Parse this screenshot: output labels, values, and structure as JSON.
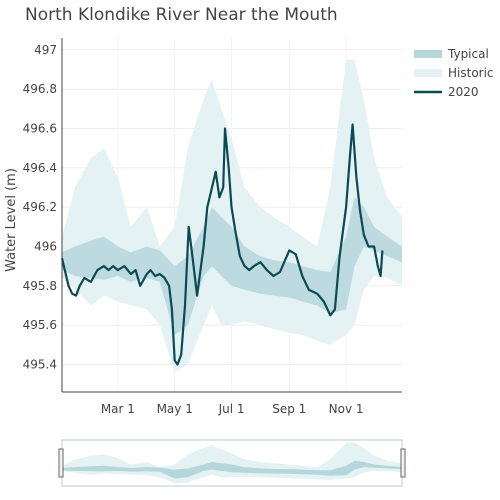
{
  "chart_data": {
    "type": "line",
    "title": "North Klondike River Near the Mouth",
    "ylabel": "Water Level (m)",
    "xlabel": "",
    "x_domain": [
      "2020-01-01",
      "2020-12-31"
    ],
    "ylim": [
      495.26,
      497.06
    ],
    "y_ticks": [
      495.4,
      495.6,
      495.8,
      496,
      496.2,
      496.4,
      496.6,
      496.8,
      497
    ],
    "y_tick_labels": [
      "495.4",
      "495.6",
      "495.8",
      "496",
      "496.2",
      "496.4",
      "496.6",
      "496.8",
      "497"
    ],
    "x_ticks": [
      "2020-03-01",
      "2020-05-01",
      "2020-07-01",
      "2020-09-01",
      "2020-11-01"
    ],
    "x_tick_labels": [
      "Mar 1",
      "May 1",
      "Jul 1",
      "Sep 1",
      "Nov 1"
    ],
    "grid": true,
    "legend_position": "top-right",
    "legend": {
      "typical": "Typical",
      "historic": "Historic",
      "current": "2020"
    },
    "colors": {
      "typical": "#b5d6db",
      "historic": "#e4f2f4",
      "current": "#0b4a51"
    },
    "historic_band": {
      "x": [
        "2020-01-01",
        "2020-01-15",
        "2020-02-01",
        "2020-02-15",
        "2020-03-01",
        "2020-03-15",
        "2020-04-01",
        "2020-04-15",
        "2020-05-01",
        "2020-05-15",
        "2020-06-01",
        "2020-06-10",
        "2020-06-20",
        "2020-07-01",
        "2020-07-15",
        "2020-08-01",
        "2020-08-15",
        "2020-09-01",
        "2020-09-15",
        "2020-10-01",
        "2020-10-15",
        "2020-11-01",
        "2020-11-10",
        "2020-11-20",
        "2020-12-01",
        "2020-12-15",
        "2020-12-31"
      ],
      "low": [
        495.84,
        495.78,
        495.7,
        495.75,
        495.72,
        495.7,
        495.68,
        495.6,
        495.36,
        495.4,
        495.6,
        495.7,
        495.6,
        495.6,
        495.62,
        495.6,
        495.58,
        495.56,
        495.55,
        495.52,
        495.5,
        495.55,
        495.6,
        495.78,
        495.85,
        495.84,
        495.8
      ],
      "high": [
        496.05,
        496.3,
        496.45,
        496.5,
        496.35,
        496.1,
        496.2,
        496.0,
        496.1,
        496.5,
        496.75,
        496.85,
        496.7,
        496.55,
        496.3,
        496.2,
        496.15,
        496.1,
        496.05,
        496.0,
        496.3,
        496.95,
        496.95,
        496.75,
        496.45,
        496.25,
        496.15
      ]
    },
    "typical_band": {
      "x": [
        "2020-01-01",
        "2020-01-15",
        "2020-02-01",
        "2020-02-15",
        "2020-03-01",
        "2020-03-15",
        "2020-04-01",
        "2020-04-15",
        "2020-05-01",
        "2020-05-15",
        "2020-06-01",
        "2020-06-10",
        "2020-06-20",
        "2020-07-01",
        "2020-07-15",
        "2020-08-01",
        "2020-08-15",
        "2020-09-01",
        "2020-09-15",
        "2020-10-01",
        "2020-10-15",
        "2020-11-01",
        "2020-11-10",
        "2020-11-20",
        "2020-12-01",
        "2020-12-15",
        "2020-12-31"
      ],
      "low": [
        495.88,
        495.85,
        495.84,
        495.83,
        495.85,
        495.82,
        495.84,
        495.82,
        495.55,
        495.6,
        495.85,
        495.9,
        495.85,
        495.8,
        495.78,
        495.76,
        495.75,
        495.74,
        495.72,
        495.7,
        495.66,
        495.68,
        495.9,
        496.0,
        495.98,
        495.95,
        495.92
      ],
      "high": [
        495.97,
        496.0,
        496.03,
        496.05,
        496.0,
        495.97,
        496.0,
        495.98,
        495.9,
        495.95,
        496.1,
        496.2,
        496.15,
        496.1,
        496.0,
        495.95,
        495.93,
        495.92,
        495.9,
        495.88,
        495.87,
        496.05,
        496.25,
        496.2,
        496.1,
        496.05,
        496.0
      ]
    },
    "series_2020": {
      "name": "2020",
      "x": [
        "2020-01-01",
        "2020-01-04",
        "2020-01-08",
        "2020-01-12",
        "2020-01-16",
        "2020-01-20",
        "2020-01-25",
        "2020-02-01",
        "2020-02-08",
        "2020-02-15",
        "2020-02-20",
        "2020-02-25",
        "2020-03-01",
        "2020-03-08",
        "2020-03-15",
        "2020-03-20",
        "2020-03-25",
        "2020-04-01",
        "2020-04-05",
        "2020-04-10",
        "2020-04-15",
        "2020-04-20",
        "2020-04-25",
        "2020-04-28",
        "2020-05-01",
        "2020-05-04",
        "2020-05-08",
        "2020-05-12",
        "2020-05-16",
        "2020-05-20",
        "2020-05-25",
        "2020-06-01",
        "2020-06-05",
        "2020-06-10",
        "2020-06-14",
        "2020-06-18",
        "2020-06-22",
        "2020-06-24",
        "2020-06-28",
        "2020-07-01",
        "2020-07-05",
        "2020-07-10",
        "2020-07-15",
        "2020-07-20",
        "2020-07-25",
        "2020-08-01",
        "2020-08-08",
        "2020-08-15",
        "2020-08-22",
        "2020-09-01",
        "2020-09-08",
        "2020-09-15",
        "2020-09-22",
        "2020-10-01",
        "2020-10-08",
        "2020-10-15",
        "2020-10-20",
        "2020-10-25",
        "2020-11-01",
        "2020-11-05",
        "2020-11-08",
        "2020-11-12",
        "2020-11-16",
        "2020-11-20",
        "2020-11-25",
        "2020-12-01",
        "2020-12-05",
        "2020-12-08",
        "2020-12-10"
      ],
      "y": [
        495.94,
        495.88,
        495.8,
        495.76,
        495.75,
        495.8,
        495.84,
        495.82,
        495.88,
        495.9,
        495.88,
        495.9,
        495.88,
        495.9,
        495.86,
        495.88,
        495.8,
        495.86,
        495.88,
        495.85,
        495.86,
        495.84,
        495.8,
        495.68,
        495.42,
        495.4,
        495.45,
        495.7,
        496.1,
        495.95,
        495.75,
        496.0,
        496.2,
        496.3,
        496.38,
        496.25,
        496.3,
        496.6,
        496.4,
        496.2,
        496.08,
        495.95,
        495.9,
        495.88,
        495.9,
        495.92,
        495.88,
        495.85,
        495.87,
        495.98,
        495.96,
        495.85,
        495.78,
        495.76,
        495.72,
        495.65,
        495.68,
        495.95,
        496.2,
        496.45,
        496.62,
        496.35,
        496.18,
        496.06,
        496.0,
        496.0,
        495.9,
        495.85,
        495.98
      ]
    }
  }
}
